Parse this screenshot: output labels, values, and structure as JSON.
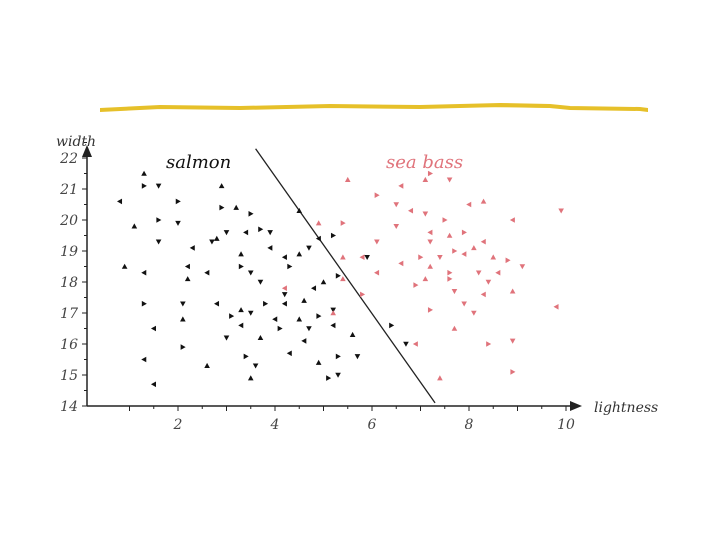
{
  "colors": {
    "title_rule": "#e6c02a",
    "salmon": "#111111",
    "sea_bass": "#e0737b",
    "axis": "#222222"
  },
  "chart_data": {
    "type": "scatter",
    "title": "",
    "xlabel": "lightness",
    "ylabel": "width",
    "xlim": [
      0.1,
      10.3
    ],
    "ylim": [
      14,
      22.5
    ],
    "xticks": [
      2,
      4,
      6,
      8,
      10
    ],
    "yticks": [
      14,
      15,
      16,
      17,
      18,
      19,
      20,
      21,
      22
    ],
    "grid": false,
    "legend": "in-plot labels above clusters",
    "annotations": [
      {
        "text": "salmon",
        "series": "salmon"
      },
      {
        "text": "sea bass",
        "series": "sea bass"
      }
    ],
    "decision_boundary": {
      "from": [
        3.6,
        22.3
      ],
      "to": [
        7.3,
        14.1
      ]
    },
    "series": [
      {
        "name": "salmon",
        "points": [
          [
            1.3,
            21.5
          ],
          [
            1.3,
            21.1
          ],
          [
            1.6,
            21.1
          ],
          [
            0.8,
            20.6
          ],
          [
            1.1,
            19.8
          ],
          [
            1.6,
            20
          ],
          [
            1.6,
            19.3
          ],
          [
            1.3,
            18.3
          ],
          [
            0.9,
            18.5
          ],
          [
            2.0,
            20.6
          ],
          [
            2.0,
            19.9
          ],
          [
            2.3,
            19.1
          ],
          [
            2.9,
            21.1
          ],
          [
            2.9,
            20.4
          ],
          [
            2.7,
            19.3
          ],
          [
            2.2,
            18.5
          ],
          [
            3.2,
            20.4
          ],
          [
            3.5,
            20.2
          ],
          [
            3.0,
            19.6
          ],
          [
            3.4,
            19.6
          ],
          [
            2.8,
            19.4
          ],
          [
            3.7,
            19.7
          ],
          [
            3.9,
            19.6
          ],
          [
            3.9,
            19.1
          ],
          [
            3.3,
            18.9
          ],
          [
            3.3,
            18.5
          ],
          [
            3.5,
            18.3
          ],
          [
            4.2,
            18.8
          ],
          [
            4.5,
            18.9
          ],
          [
            4.3,
            18.5
          ],
          [
            3.7,
            18.0
          ],
          [
            2.6,
            18.3
          ],
          [
            2.2,
            18.1
          ],
          [
            1.3,
            17.3
          ],
          [
            2.1,
            17.3
          ],
          [
            2.8,
            17.3
          ],
          [
            3.3,
            17.1
          ],
          [
            3.8,
            17.3
          ],
          [
            4.2,
            17.6
          ],
          [
            4.2,
            17.3
          ],
          [
            4.6,
            17.4
          ],
          [
            3.1,
            16.9
          ],
          [
            3.5,
            17.0
          ],
          [
            4.0,
            16.8
          ],
          [
            4.5,
            16.8
          ],
          [
            4.9,
            16.9
          ],
          [
            5.2,
            17.1
          ],
          [
            4.8,
            17.8
          ],
          [
            5.0,
            18.0
          ],
          [
            5.3,
            18.2
          ],
          [
            4.7,
            19.1
          ],
          [
            4.9,
            19.4
          ],
          [
            4.5,
            20.3
          ],
          [
            5.2,
            19.5
          ],
          [
            5.9,
            18.8
          ],
          [
            1.5,
            16.5
          ],
          [
            2.1,
            16.8
          ],
          [
            2.1,
            15.9
          ],
          [
            3.0,
            16.2
          ],
          [
            3.3,
            16.6
          ],
          [
            3.7,
            16.2
          ],
          [
            4.1,
            16.5
          ],
          [
            4.7,
            16.5
          ],
          [
            5.2,
            16.6
          ],
          [
            5.6,
            16.3
          ],
          [
            6.4,
            16.6
          ],
          [
            6.7,
            16.0
          ],
          [
            1.3,
            15.5
          ],
          [
            2.6,
            15.3
          ],
          [
            3.4,
            15.6
          ],
          [
            3.6,
            15.3
          ],
          [
            4.3,
            15.7
          ],
          [
            4.9,
            15.4
          ],
          [
            5.3,
            15.6
          ],
          [
            5.7,
            15.6
          ],
          [
            1.5,
            14.7
          ],
          [
            3.5,
            14.9
          ],
          [
            5.1,
            14.9
          ],
          [
            5.3,
            15.0
          ],
          [
            4.6,
            16.1
          ]
        ]
      },
      {
        "name": "sea bass",
        "points": [
          [
            5.5,
            21.3
          ],
          [
            6.1,
            20.8
          ],
          [
            6.5,
            20.5
          ],
          [
            6.6,
            21.1
          ],
          [
            7.1,
            21.3
          ],
          [
            7.2,
            21.5
          ],
          [
            7.6,
            21.3
          ],
          [
            8.0,
            20.5
          ],
          [
            8.3,
            20.6
          ],
          [
            7.5,
            20.0
          ],
          [
            7.1,
            20.2
          ],
          [
            6.8,
            20.3
          ],
          [
            4.9,
            19.9
          ],
          [
            5.4,
            19.9
          ],
          [
            6.5,
            19.8
          ],
          [
            7.2,
            19.6
          ],
          [
            7.6,
            19.5
          ],
          [
            7.9,
            19.6
          ],
          [
            7.2,
            19.3
          ],
          [
            8.3,
            19.3
          ],
          [
            8.1,
            19.1
          ],
          [
            7.7,
            19.0
          ],
          [
            6.1,
            19.3
          ],
          [
            5.8,
            18.8
          ],
          [
            5.4,
            18.8
          ],
          [
            7.0,
            18.8
          ],
          [
            7.4,
            18.8
          ],
          [
            7.9,
            18.9
          ],
          [
            8.5,
            18.8
          ],
          [
            8.8,
            18.7
          ],
          [
            9.1,
            18.5
          ],
          [
            6.6,
            18.6
          ],
          [
            7.2,
            18.5
          ],
          [
            7.6,
            18.3
          ],
          [
            8.2,
            18.3
          ],
          [
            8.6,
            18.3
          ],
          [
            7.1,
            18.1
          ],
          [
            7.6,
            18.1
          ],
          [
            8.4,
            18.0
          ],
          [
            6.1,
            18.3
          ],
          [
            5.4,
            18.1
          ],
          [
            6.9,
            17.9
          ],
          [
            7.7,
            17.7
          ],
          [
            8.3,
            17.6
          ],
          [
            8.9,
            17.7
          ],
          [
            5.8,
            17.6
          ],
          [
            7.9,
            17.3
          ],
          [
            4.2,
            17.8
          ],
          [
            5.2,
            17.0
          ],
          [
            7.2,
            17.1
          ],
          [
            8.1,
            17.0
          ],
          [
            9.8,
            17.2
          ],
          [
            7.7,
            16.5
          ],
          [
            8.4,
            16.0
          ],
          [
            8.9,
            16.1
          ],
          [
            6.9,
            16.0
          ],
          [
            7.4,
            14.9
          ],
          [
            8.9,
            15.1
          ],
          [
            9.9,
            20.3
          ],
          [
            8.9,
            20.0
          ]
        ]
      }
    ]
  }
}
